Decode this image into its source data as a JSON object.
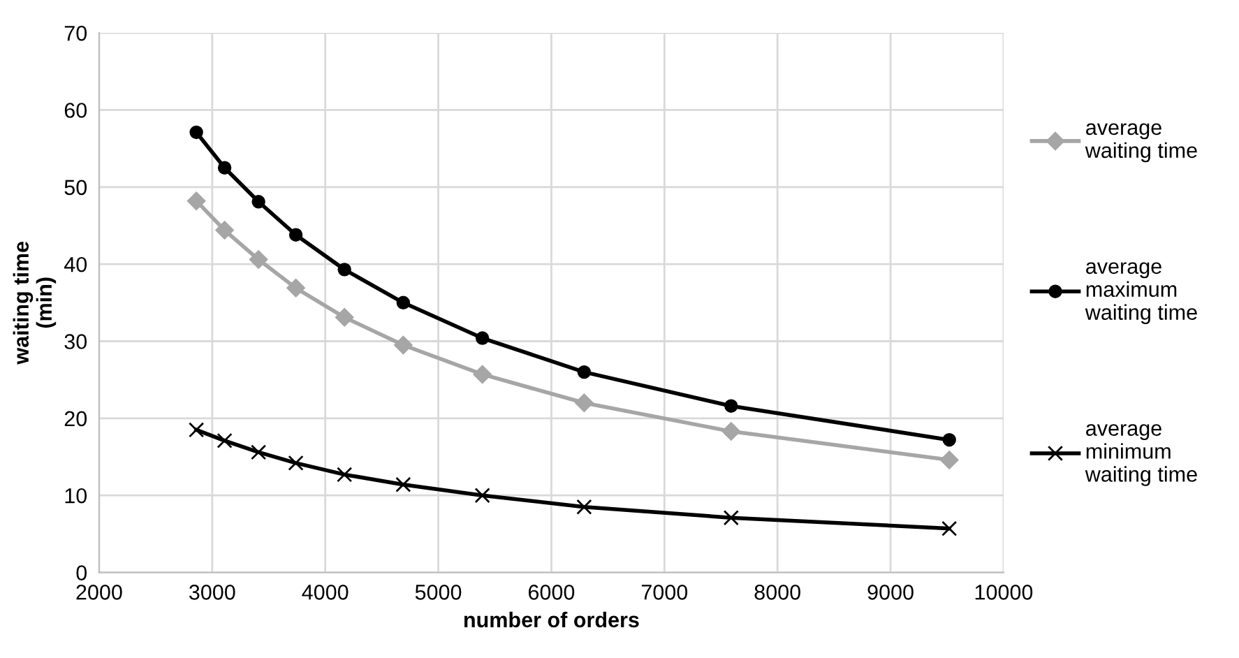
{
  "chart_data": {
    "type": "line",
    "xlabel": "number of orders",
    "ylabel": "waiting time\n(min)",
    "xlim": [
      2000,
      10000
    ],
    "xticks": [
      2000,
      3000,
      4000,
      5000,
      6000,
      7000,
      8000,
      9000,
      10000
    ],
    "ylim": [
      0,
      70
    ],
    "yticks": [
      0,
      10,
      20,
      30,
      40,
      50,
      60,
      70
    ],
    "grid": true,
    "legend": "right",
    "x": [
      2860,
      3110,
      3410,
      3740,
      4170,
      4690,
      5390,
      6290,
      7590,
      9520
    ],
    "series": [
      {
        "name": "average\nwaiting time",
        "color": "#a6a6a6",
        "marker": "diamond",
        "values": [
          48.2,
          44.4,
          40.6,
          36.9,
          33.1,
          29.5,
          25.7,
          22.0,
          18.3,
          14.6
        ]
      },
      {
        "name": "average\nmaximum\nwaiting time",
        "color": "#000000",
        "marker": "circle",
        "values": [
          57.1,
          52.5,
          48.1,
          43.8,
          39.3,
          35.0,
          30.4,
          26.0,
          21.6,
          17.2
        ]
      },
      {
        "name": "average\nminimum\nwaiting time",
        "color": "#000000",
        "marker": "cross",
        "values": [
          18.5,
          17.1,
          15.6,
          14.2,
          12.7,
          11.4,
          10.0,
          8.5,
          7.1,
          5.7
        ]
      }
    ]
  }
}
